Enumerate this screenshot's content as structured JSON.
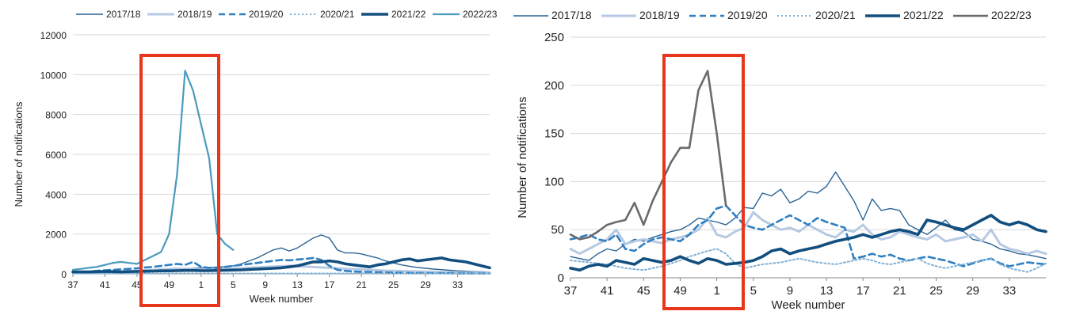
{
  "chart_data": [
    {
      "type": "line",
      "title": "",
      "xlabel": "Week number",
      "ylabel": "Number of notifications",
      "ylim": [
        0,
        12000
      ],
      "yticks": [
        0,
        2000,
        4000,
        6000,
        8000,
        10000,
        12000
      ],
      "x_tick_labels": [
        "37",
        "41",
        "45",
        "49",
        "1",
        "5",
        "9",
        "13",
        "17",
        "21",
        "25",
        "29",
        "33"
      ],
      "week_axis_note": "",
      "legend_position": "top",
      "grid": true,
      "series": [
        {
          "name": "2017/18",
          "style": "solid-thin",
          "color": "#2a6496",
          "values": [
            50,
            60,
            70,
            80,
            80,
            90,
            100,
            110,
            120,
            130,
            150,
            180,
            200,
            230,
            250,
            280,
            300,
            320,
            340,
            360,
            400,
            500,
            650,
            800,
            1000,
            1200,
            1300,
            1150,
            1300,
            1550,
            1800,
            1950,
            1800,
            1200,
            1050,
            1050,
            1000,
            900,
            800,
            650,
            550,
            450,
            380,
            320,
            280,
            240,
            210,
            180,
            150,
            130,
            110,
            100,
            80
          ]
        },
        {
          "name": "2018/19",
          "style": "solid-light",
          "color": "#b6c9e3",
          "values": [
            60,
            70,
            80,
            90,
            100,
            110,
            120,
            140,
            160,
            180,
            200,
            220,
            240,
            260,
            250,
            240,
            230,
            220,
            230,
            240,
            260,
            280,
            300,
            320,
            340,
            360,
            380,
            400,
            380,
            360,
            340,
            320,
            300,
            280,
            260,
            240,
            220,
            200,
            180,
            160,
            150,
            140,
            130,
            120,
            110,
            100,
            90,
            80,
            70,
            60,
            55,
            50,
            45
          ]
        },
        {
          "name": "2019/20",
          "style": "dashed",
          "color": "#2f7fc1",
          "values": [
            100,
            110,
            120,
            150,
            180,
            200,
            230,
            250,
            280,
            320,
            350,
            400,
            450,
            500,
            450,
            600,
            350,
            300,
            300,
            350,
            400,
            450,
            500,
            550,
            600,
            650,
            700,
            680,
            720,
            750,
            800,
            700,
            400,
            200,
            150,
            120,
            100,
            90,
            80,
            70,
            60,
            50,
            45,
            40,
            35,
            30,
            30,
            30,
            25,
            25,
            20,
            20,
            20
          ]
        },
        {
          "name": "2020/21",
          "style": "dotted",
          "color": "#7fb0d6",
          "values": [
            20,
            20,
            20,
            20,
            20,
            20,
            20,
            20,
            20,
            20,
            20,
            20,
            20,
            20,
            20,
            20,
            20,
            20,
            20,
            20,
            20,
            20,
            20,
            20,
            20,
            20,
            20,
            20,
            20,
            20,
            20,
            20,
            20,
            20,
            20,
            20,
            20,
            20,
            20,
            20,
            20,
            20,
            20,
            20,
            20,
            20,
            20,
            20,
            20,
            20,
            20,
            20,
            20
          ]
        },
        {
          "name": "2021/22",
          "style": "solid-thick",
          "color": "#124e7e",
          "values": [
            100,
            100,
            100,
            110,
            120,
            110,
            100,
            110,
            120,
            130,
            140,
            150,
            150,
            160,
            170,
            170,
            160,
            160,
            170,
            180,
            190,
            200,
            220,
            240,
            260,
            280,
            300,
            350,
            400,
            500,
            600,
            600,
            650,
            600,
            500,
            450,
            400,
            350,
            450,
            500,
            600,
            700,
            750,
            650,
            700,
            750,
            800,
            700,
            650,
            600,
            500,
            400,
            300
          ]
        },
        {
          "name": "2022/23",
          "style": "solid-teal",
          "color": "#4a9bbe",
          "values": [
            200,
            250,
            300,
            350,
            450,
            550,
            600,
            550,
            500,
            700,
            900,
            1100,
            2000,
            5000,
            10200,
            9200,
            7500,
            5800,
            2000,
            1500,
            1200
          ]
        }
      ]
    },
    {
      "type": "line",
      "title": "",
      "xlabel": "Week number",
      "ylabel": "Number of notifications",
      "ylim": [
        0,
        250
      ],
      "yticks": [
        0,
        50,
        100,
        150,
        200,
        250
      ],
      "x_tick_labels": [
        "37",
        "41",
        "45",
        "49",
        "1",
        "5",
        "9",
        "13",
        "17",
        "21",
        "25",
        "29",
        "33"
      ],
      "legend_position": "top",
      "grid": true,
      "series": [
        {
          "name": "2017/18",
          "style": "solid-thin",
          "color": "#2a6496",
          "values": [
            22,
            20,
            18,
            25,
            30,
            28,
            35,
            40,
            38,
            42,
            45,
            48,
            50,
            55,
            62,
            60,
            58,
            55,
            62,
            73,
            72,
            88,
            85,
            92,
            78,
            82,
            90,
            88,
            95,
            110,
            95,
            80,
            60,
            82,
            70,
            72,
            70,
            55,
            50,
            45,
            52,
            60,
            50,
            48,
            40,
            38,
            35,
            30,
            28,
            25,
            24,
            22,
            20
          ]
        },
        {
          "name": "2018/19",
          "style": "solid-light",
          "color": "#b6c9e3",
          "values": [
            30,
            25,
            30,
            35,
            40,
            50,
            35,
            38,
            40,
            38,
            36,
            40,
            42,
            45,
            50,
            62,
            45,
            42,
            48,
            52,
            68,
            60,
            55,
            50,
            52,
            48,
            55,
            50,
            45,
            42,
            50,
            48,
            55,
            45,
            40,
            42,
            48,
            45,
            42,
            40,
            45,
            38,
            40,
            42,
            45,
            38,
            50,
            35,
            30,
            28,
            25,
            28,
            25
          ]
        },
        {
          "name": "2019/20",
          "style": "dashed",
          "color": "#2f7fc1",
          "values": [
            40,
            42,
            45,
            40,
            38,
            45,
            30,
            28,
            35,
            40,
            42,
            40,
            38,
            45,
            55,
            60,
            72,
            75,
            65,
            55,
            52,
            50,
            55,
            60,
            65,
            60,
            55,
            62,
            58,
            55,
            52,
            20,
            22,
            25,
            22,
            24,
            20,
            18,
            20,
            22,
            20,
            18,
            15,
            12,
            15,
            18,
            20,
            15,
            12,
            14,
            16,
            15,
            14
          ]
        },
        {
          "name": "2020/21",
          "style": "dotted",
          "color": "#7fb0d6",
          "values": [
            18,
            17,
            16,
            15,
            14,
            12,
            10,
            9,
            8,
            10,
            12,
            15,
            18,
            22,
            25,
            28,
            30,
            25,
            15,
            10,
            12,
            14,
            15,
            16,
            18,
            20,
            18,
            16,
            15,
            14,
            16,
            18,
            20,
            18,
            15,
            14,
            16,
            18,
            20,
            15,
            12,
            10,
            12,
            14,
            16,
            18,
            20,
            14,
            10,
            8,
            6,
            10,
            15
          ]
        },
        {
          "name": "2021/22",
          "style": "solid-thick",
          "color": "#124e7e",
          "values": [
            10,
            8,
            12,
            14,
            12,
            18,
            16,
            14,
            20,
            18,
            16,
            18,
            22,
            18,
            15,
            20,
            18,
            14,
            15,
            16,
            18,
            22,
            28,
            30,
            25,
            28,
            30,
            32,
            35,
            38,
            40,
            42,
            45,
            42,
            45,
            48,
            50,
            48,
            45,
            60,
            58,
            55,
            52,
            50,
            55,
            60,
            65,
            58,
            55,
            58,
            55,
            50,
            48
          ]
        },
        {
          "name": "2022/23",
          "style": "solid-grey",
          "color": "#6a6a6a",
          "values": [
            45,
            40,
            42,
            48,
            55,
            58,
            60,
            78,
            55,
            80,
            100,
            120,
            135,
            135,
            195,
            215,
            150,
            75
          ]
        }
      ]
    }
  ]
}
